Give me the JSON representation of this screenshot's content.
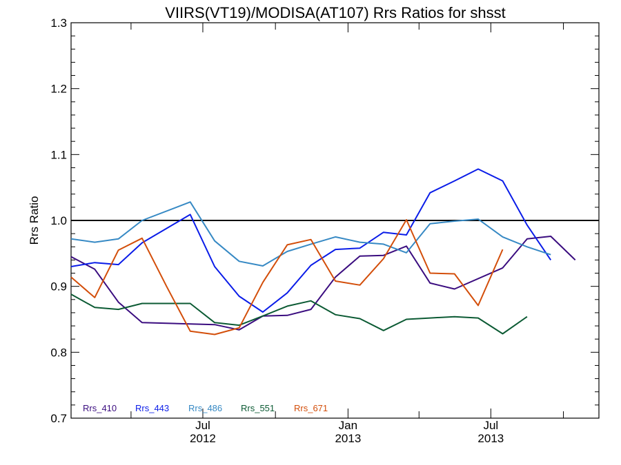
{
  "chart_data": {
    "type": "line",
    "title": "VIIRS(VT19)/MODISA(AT107)  Rrs Ratios for shsst",
    "xlabel": "",
    "ylabel": "Rrs Ratio",
    "ylim": [
      0.7,
      1.3
    ],
    "yticks": [
      "0.7",
      "0.8",
      "0.9",
      "1.0",
      "1.1",
      "1.2",
      "1.3"
    ],
    "xlim": [
      "2012-01-16",
      "2013-11-15"
    ],
    "xticks": [
      {
        "date": "2012-07-01",
        "month": "Jul",
        "year": "2012"
      },
      {
        "date": "2013-01-01",
        "month": "Jan",
        "year": "2013"
      },
      {
        "date": "2013-07-01",
        "month": "Jul",
        "year": "2013"
      }
    ],
    "reference_line": 1.0,
    "x": [
      "2012-01-16",
      "2012-02-15",
      "2012-03-16",
      "2012-04-15",
      "2012-05-16",
      "2012-06-15",
      "2012-07-16",
      "2012-08-16",
      "2012-09-15",
      "2012-10-16",
      "2012-11-15",
      "2012-12-16",
      "2013-01-16",
      "2013-02-15",
      "2013-03-16",
      "2013-04-15",
      "2013-05-16",
      "2013-06-15",
      "2013-07-16",
      "2013-08-16",
      "2013-09-15",
      "2013-10-16",
      "2013-11-15"
    ],
    "series": [
      {
        "name": "Rrs_410",
        "color": "#3a0c7f",
        "values": [
          0.945,
          0.926,
          0.876,
          0.845,
          0.844,
          0.843,
          0.842,
          0.834,
          0.855,
          0.856,
          0.865,
          0.914,
          0.946,
          0.947,
          0.961,
          0.905,
          0.896,
          null,
          0.928,
          0.972,
          0.976,
          0.94,
          null
        ]
      },
      {
        "name": "Rrs_443",
        "color": "#0a1ce8",
        "values": [
          0.93,
          0.936,
          0.933,
          0.966,
          null,
          1.009,
          0.93,
          0.885,
          0.861,
          0.89,
          0.932,
          0.956,
          0.958,
          0.982,
          0.978,
          1.042,
          1.06,
          1.078,
          1.06,
          0.993,
          0.94,
          null,
          null
        ]
      },
      {
        "name": "Rrs_486",
        "color": "#3689c4",
        "values": [
          0.972,
          0.967,
          0.972,
          1.0,
          null,
          1.028,
          0.969,
          0.938,
          0.931,
          0.953,
          0.964,
          0.975,
          0.967,
          0.964,
          0.951,
          0.995,
          0.999,
          1.002,
          0.975,
          0.96,
          0.948,
          null,
          null
        ]
      },
      {
        "name": "Rrs_551",
        "color": "#0b5a33",
        "values": [
          0.888,
          0.868,
          0.865,
          0.874,
          0.874,
          0.874,
          0.845,
          0.841,
          0.855,
          0.87,
          0.878,
          0.857,
          0.851,
          0.833,
          0.85,
          0.852,
          0.854,
          0.852,
          0.828,
          0.854,
          null,
          null,
          null
        ]
      },
      {
        "name": "Rrs_671",
        "color": "#d34e0a",
        "values": [
          0.914,
          0.883,
          0.955,
          0.973,
          0.9,
          0.832,
          0.827,
          0.837,
          0.906,
          0.963,
          0.971,
          0.908,
          0.902,
          0.942,
          1.001,
          0.92,
          0.919,
          0.871,
          0.956,
          null,
          null,
          null,
          null
        ]
      }
    ],
    "legend": {
      "placement": "bottom-left"
    }
  }
}
